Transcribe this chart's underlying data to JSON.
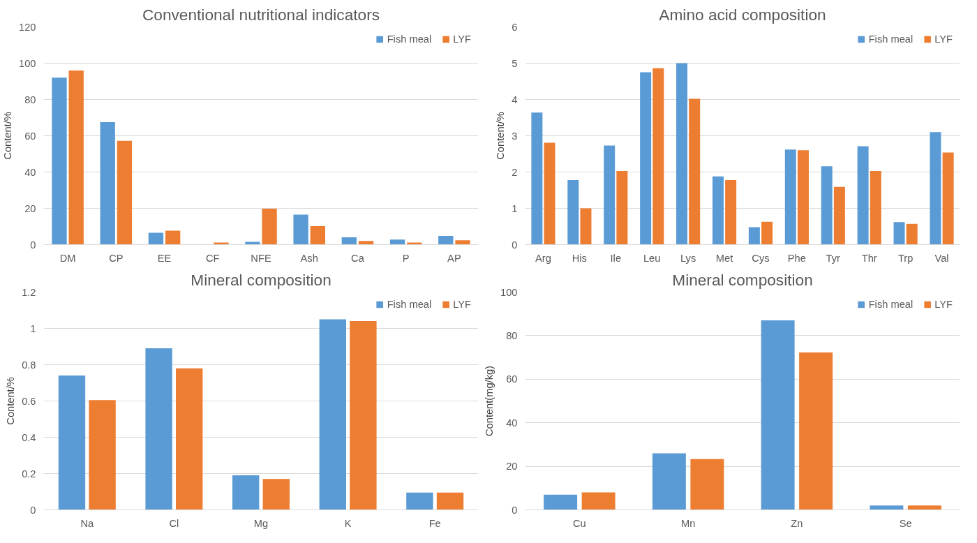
{
  "chart_data": [
    {
      "type": "bar",
      "title": "Conventional nutritional indicators",
      "ylabel": "Content/%",
      "categories": [
        "DM",
        "CP",
        "EE",
        "CF",
        "NFE",
        "Ash",
        "Ca",
        "P",
        "AP"
      ],
      "series": [
        {
          "name": "Fish meal",
          "color": "#5b9bd5",
          "values": [
            92,
            67.5,
            6.5,
            0,
            1.5,
            16.5,
            4,
            2.8,
            4.8
          ]
        },
        {
          "name": "LYF",
          "color": "#ed7d31",
          "values": [
            96,
            57.2,
            7.7,
            1.2,
            19.8,
            10.2,
            2,
            1.2,
            2.4
          ]
        }
      ],
      "ylim": [
        0,
        120
      ],
      "yticks": [
        0,
        20,
        40,
        60,
        80,
        100,
        120
      ],
      "grid": "y",
      "legend": "top right"
    },
    {
      "type": "bar",
      "title": "Amino acid composition",
      "ylabel": "Content/%",
      "categories": [
        "Arg",
        "His",
        "Ile",
        "Leu",
        "Lys",
        "Met",
        "Cys",
        "Phe",
        "Tyr",
        "Thr",
        "Trp",
        "Val"
      ],
      "series": [
        {
          "name": "Fish meal",
          "color": "#5b9bd5",
          "values": [
            3.64,
            1.78,
            2.73,
            4.75,
            5.0,
            1.88,
            0.48,
            2.62,
            2.16,
            2.71,
            0.62,
            3.1
          ]
        },
        {
          "name": "LYF",
          "color": "#ed7d31",
          "values": [
            2.81,
            1.0,
            2.03,
            4.86,
            4.02,
            1.78,
            0.63,
            2.6,
            1.59,
            2.03,
            0.57,
            2.54
          ]
        }
      ],
      "ylim": [
        0,
        6
      ],
      "yticks": [
        0,
        1,
        2,
        3,
        4,
        5,
        6
      ],
      "grid": "y",
      "legend": "top right"
    },
    {
      "type": "bar",
      "title": "Mineral composition",
      "ylabel": "Content/%",
      "categories": [
        "Na",
        "Cl",
        "Mg",
        "K",
        "Fe"
      ],
      "series": [
        {
          "name": "Fish meal",
          "color": "#5b9bd5",
          "values": [
            0.74,
            0.89,
            0.19,
            1.05,
            0.095
          ]
        },
        {
          "name": "LYF",
          "color": "#ed7d31",
          "values": [
            0.605,
            0.78,
            0.17,
            1.04,
            0.095
          ]
        }
      ],
      "ylim": [
        0,
        1.2
      ],
      "yticks": [
        0,
        {
          "value": 0.2,
          "label": "0.2"
        },
        {
          "value": 0.4,
          "label": "0.4"
        },
        {
          "value": 0.6,
          "label": "0.6"
        },
        {
          "value": 0.8,
          "label": "0.8"
        },
        1,
        {
          "value": 1.2,
          "label": "1.2"
        }
      ],
      "grid": "y",
      "legend": "top right"
    },
    {
      "type": "bar",
      "title": "Mineral composition",
      "ylabel": "Content(mg/kg)",
      "categories": [
        "Cu",
        "Mn",
        "Zn",
        "Se"
      ],
      "series": [
        {
          "name": "Fish meal",
          "color": "#5b9bd5",
          "values": [
            7,
            26,
            87,
            2
          ]
        },
        {
          "name": "LYF",
          "color": "#ed7d31",
          "values": [
            8,
            23.3,
            72.3,
            2
          ]
        }
      ],
      "ylim": [
        0,
        100
      ],
      "yticks": [
        0,
        20,
        40,
        60,
        80,
        100
      ],
      "grid": "y",
      "legend": "top right"
    }
  ]
}
